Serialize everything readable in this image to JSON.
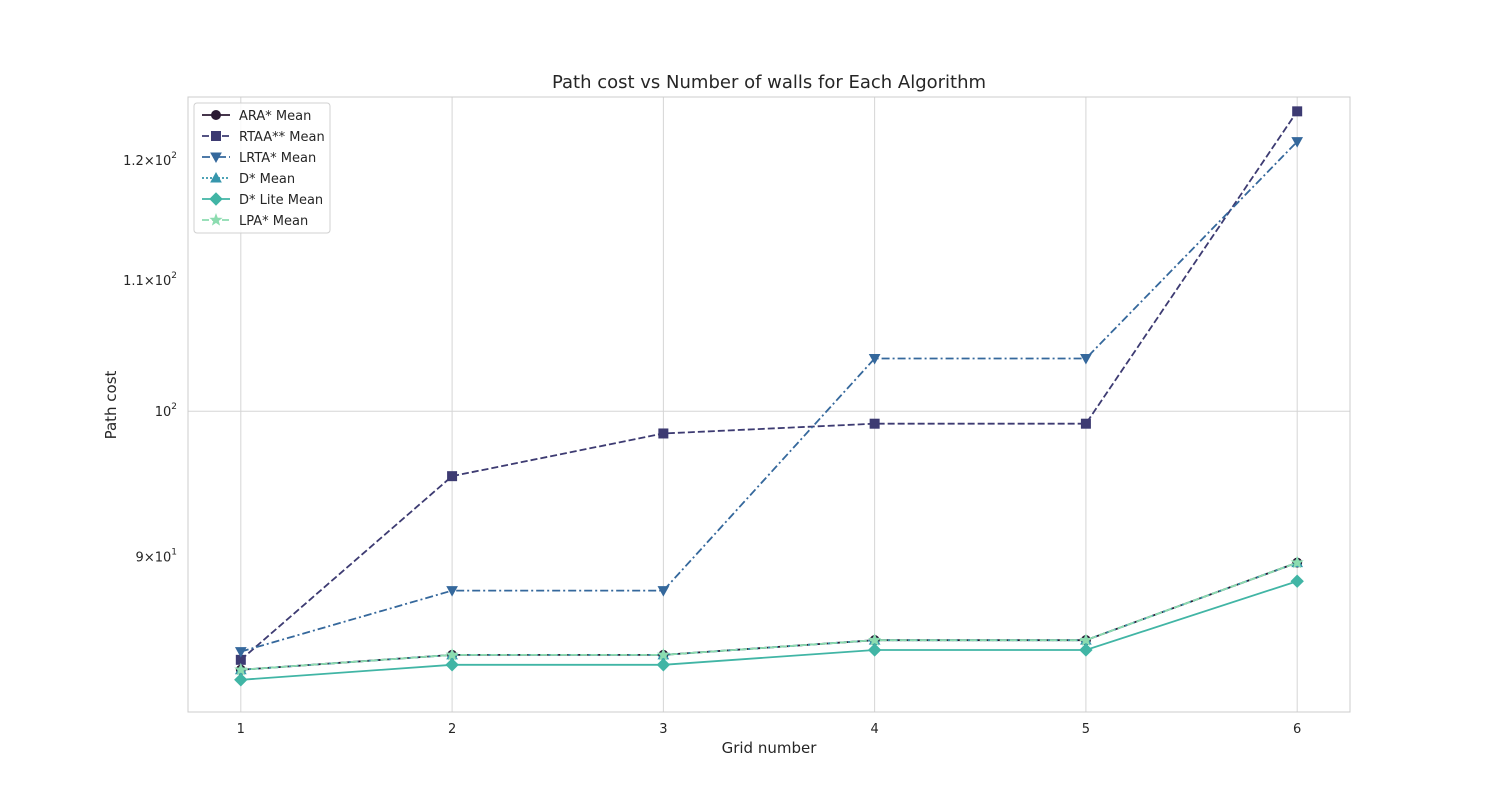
{
  "chart_data": {
    "type": "line",
    "title": "Path cost vs Number of walls for Each Algorithm",
    "xlabel": "Grid number",
    "ylabel": "Path cost",
    "yscale": "log",
    "x": [
      1,
      2,
      3,
      4,
      5,
      6
    ],
    "xlim": [
      0.75,
      6.25
    ],
    "ylim": [
      80.4,
      125.6
    ],
    "xticks": [
      "1",
      "2",
      "3",
      "4",
      "5",
      "6"
    ],
    "yticks": [
      {
        "value": 90,
        "mantissa": "9",
        "exponent": "1"
      },
      {
        "value": 100,
        "mantissa": "",
        "exponent": "2"
      },
      {
        "value": 110,
        "mantissa": "1.1",
        "exponent": "2"
      },
      {
        "value": 120,
        "mantissa": "1.2",
        "exponent": "2"
      }
    ],
    "grid": true,
    "legend_position": "top-left",
    "series": [
      {
        "name": "ARA* Mean",
        "values": [
          82.9,
          83.8,
          83.8,
          84.7,
          84.7,
          89.6
        ],
        "color": "#2b1a33",
        "dash": "solid",
        "marker": "circle"
      },
      {
        "name": "RTAA** Mean",
        "values": [
          83.5,
          95.4,
          98.4,
          99.1,
          99.1,
          124.3
        ],
        "color": "#3d3b72",
        "dash": "dashed",
        "marker": "square"
      },
      {
        "name": "LRTA* Mean",
        "values": [
          84.0,
          87.8,
          87.8,
          103.9,
          103.9,
          121.6
        ],
        "color": "#35689c",
        "dash": "dashdot",
        "marker": "triangle-down"
      },
      {
        "name": "D* Mean",
        "values": [
          82.9,
          83.8,
          83.8,
          84.7,
          84.7,
          89.6
        ],
        "color": "#3696ac",
        "dash": "dotted",
        "marker": "triangle-up"
      },
      {
        "name": "D* Lite Mean",
        "values": [
          82.3,
          83.2,
          83.2,
          84.1,
          84.1,
          88.4
        ],
        "color": "#41b5a5",
        "dash": "solid",
        "marker": "diamond"
      },
      {
        "name": "LPA* Mean",
        "values": [
          82.9,
          83.8,
          83.8,
          84.7,
          84.7,
          89.6
        ],
        "color": "#8cdcb0",
        "dash": "dashed",
        "marker": "star"
      }
    ]
  }
}
